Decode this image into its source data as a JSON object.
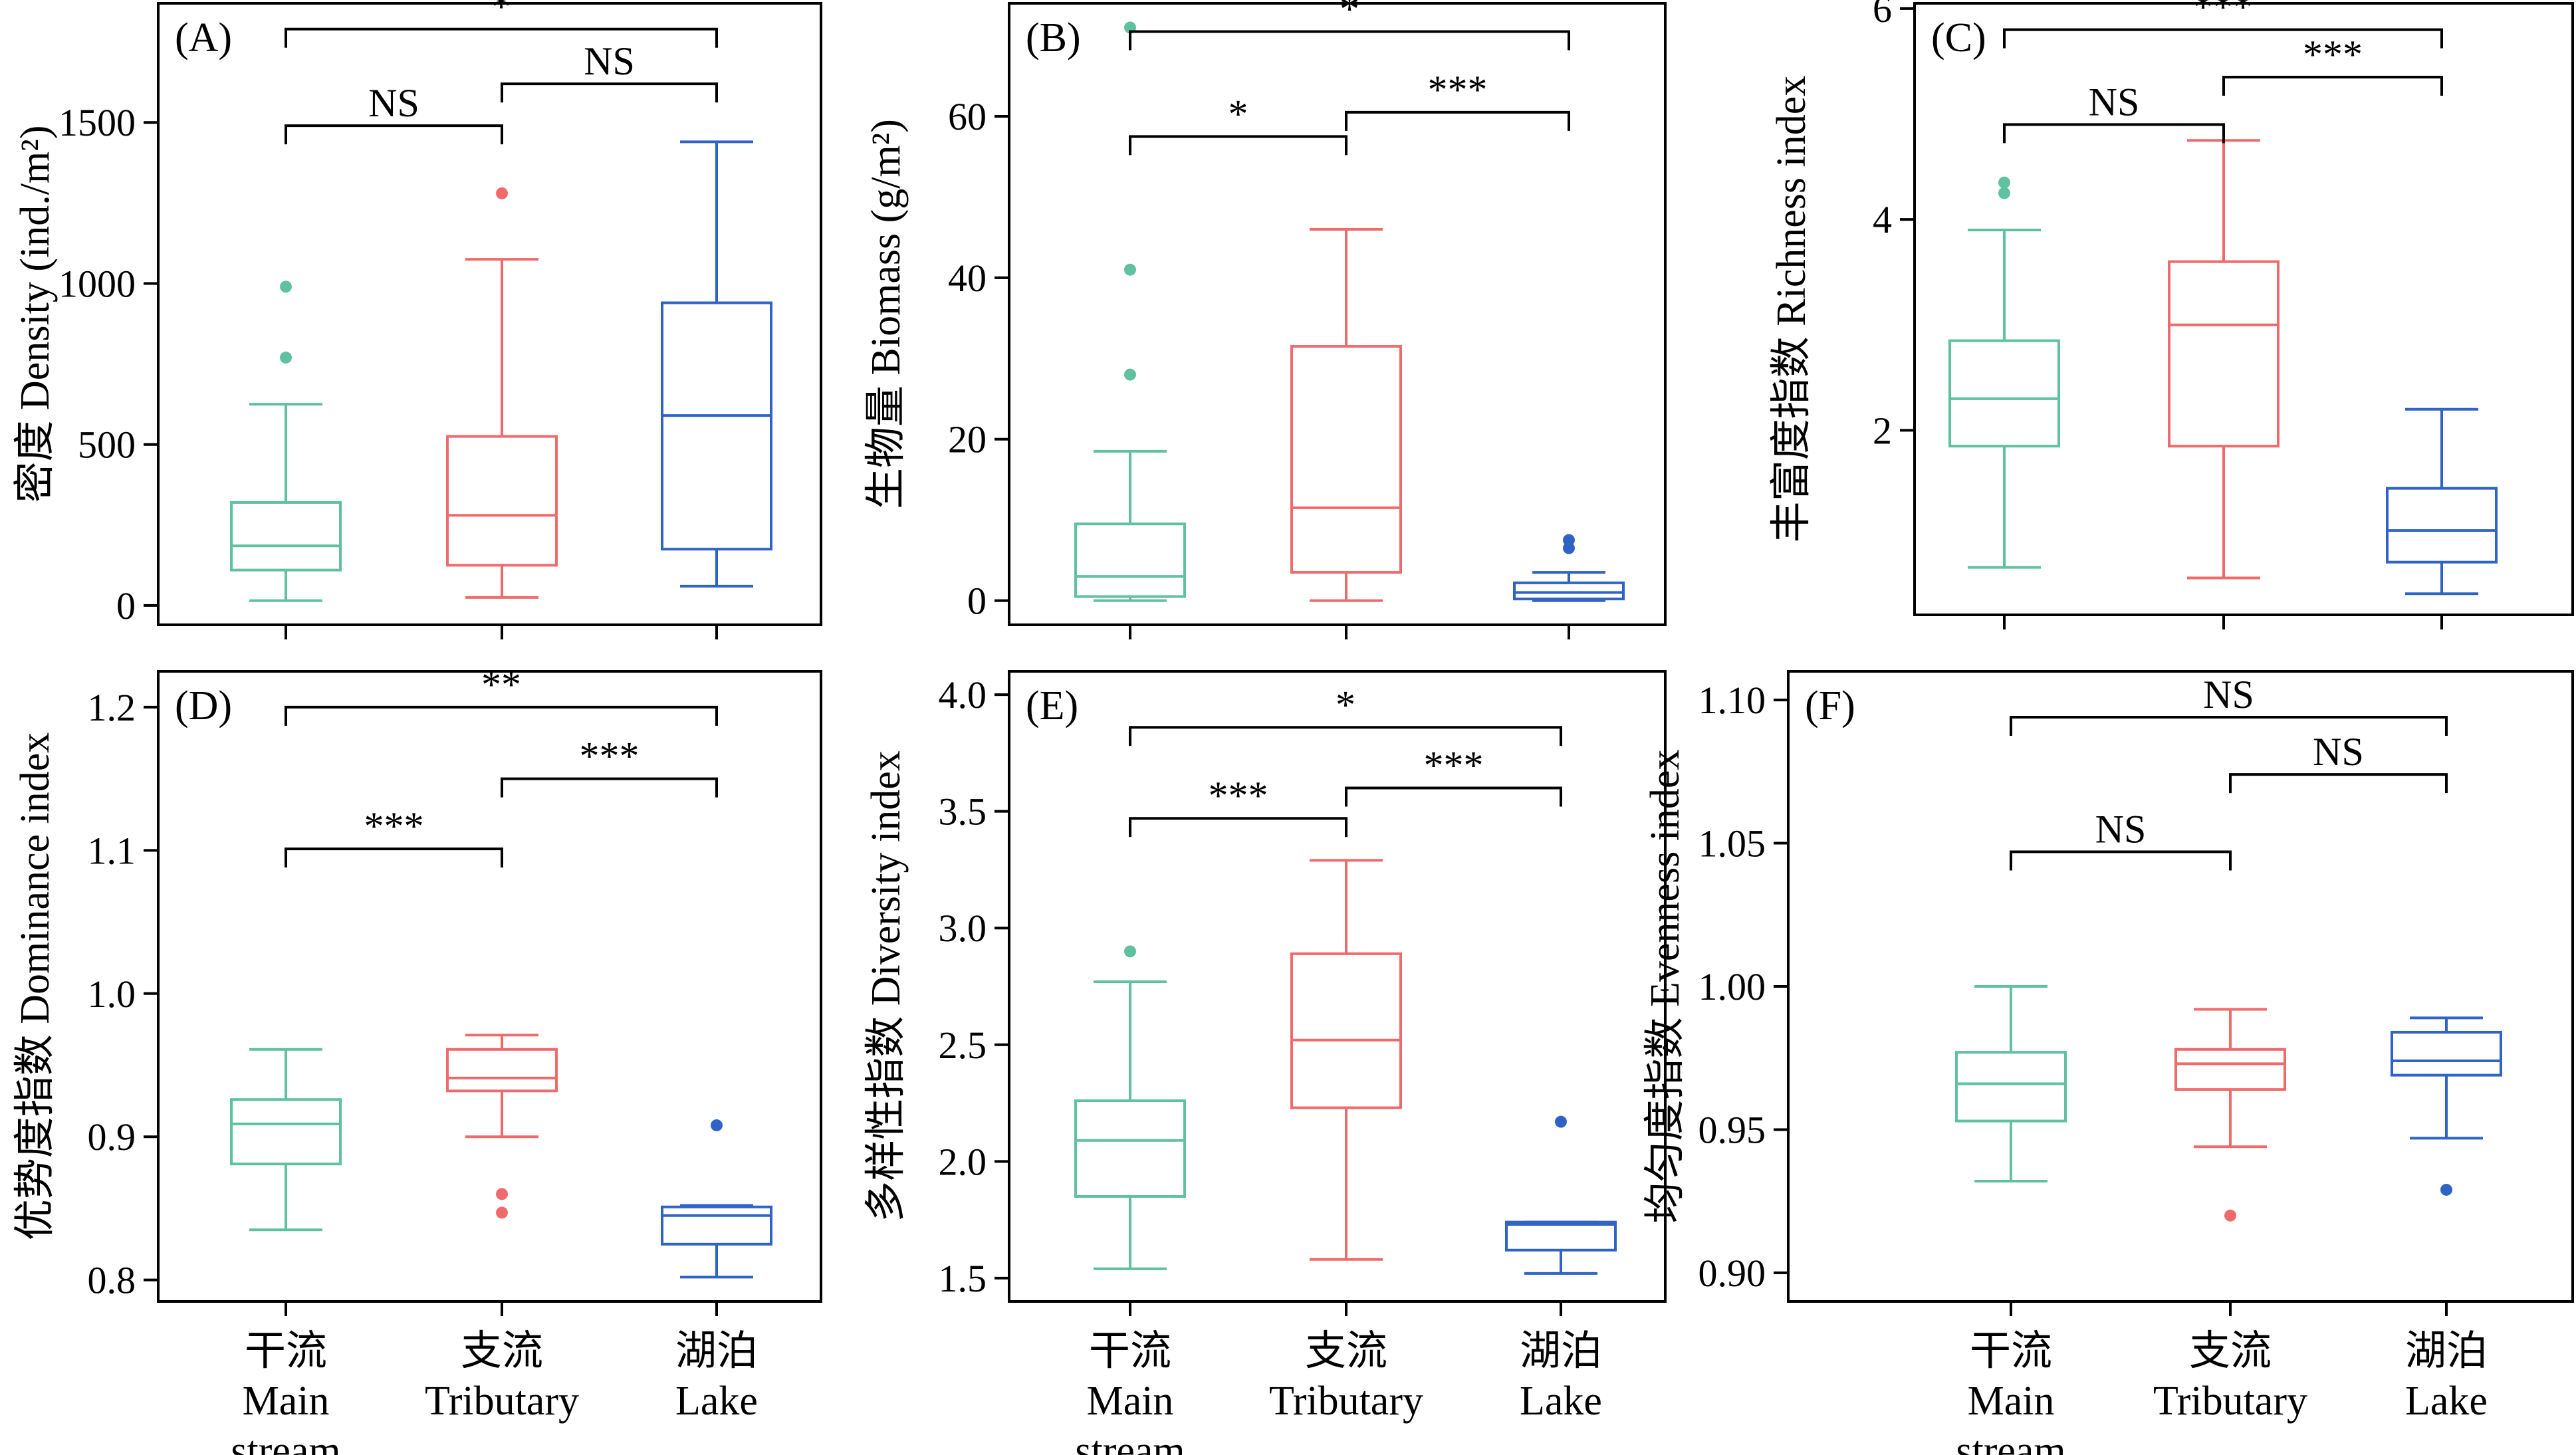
{
  "colors": {
    "main": "#5fc1a0",
    "tributary": "#ef6b6b",
    "lake": "#2f64c6",
    "axis": "#000000"
  },
  "groups": [
    {
      "zh": "干流",
      "en1": "Main",
      "en2": "stream"
    },
    {
      "zh": "支流",
      "en1": "Tributary",
      "en2": ""
    },
    {
      "zh": "湖泊",
      "en1": "Lake",
      "en2": ""
    }
  ],
  "chart_data": [
    {
      "type": "box",
      "panel": "(A)",
      "ylabel": "密度 Density (ind./m²)",
      "ylim": [
        -60,
        1870
      ],
      "yticks": [
        0,
        500,
        1000,
        1500
      ],
      "ytick_labels": [
        "0",
        "500",
        "1000",
        "1500"
      ],
      "boxes": [
        {
          "group": "Main stream",
          "min": 15,
          "q1": 110,
          "median": 185,
          "q3": 320,
          "max": 625,
          "outliers": [
            770,
            990
          ]
        },
        {
          "group": "Tributary",
          "min": 25,
          "q1": 125,
          "median": 280,
          "q3": 525,
          "max": 1075,
          "outliers": [
            1280
          ]
        },
        {
          "group": "Lake",
          "min": 60,
          "q1": 175,
          "median": 590,
          "q3": 940,
          "max": 1440,
          "outliers": []
        }
      ],
      "comparisons": [
        {
          "pair": [
            0,
            2
          ],
          "label": "*",
          "y": 1790
        },
        {
          "pair": [
            0,
            1
          ],
          "label": "NS",
          "y": 1490
        },
        {
          "pair": [
            1,
            2
          ],
          "label": "NS",
          "y": 1620
        }
      ]
    },
    {
      "type": "box",
      "panel": "(B)",
      "ylabel": "生物量 Biomass (g/m²)",
      "ylim": [
        -3,
        74
      ],
      "yticks": [
        0,
        20,
        40,
        60
      ],
      "ytick_labels": [
        "0",
        "20",
        "40",
        "60"
      ],
      "boxes": [
        {
          "group": "Main stream",
          "min": 0,
          "q1": 0.5,
          "median": 3,
          "q3": 9.5,
          "max": 18.5,
          "outliers": [
            28,
            41,
            71
          ]
        },
        {
          "group": "Tributary",
          "min": 0,
          "q1": 3.5,
          "median": 11.5,
          "q3": 31.5,
          "max": 46,
          "outliers": []
        },
        {
          "group": "Lake",
          "min": 0,
          "q1": 0.2,
          "median": 1,
          "q3": 2.2,
          "max": 3.5,
          "outliers": [
            6.5,
            7.5
          ]
        }
      ],
      "comparisons": [
        {
          "pair": [
            0,
            2
          ],
          "label": "*",
          "y": 70.5
        },
        {
          "pair": [
            0,
            1
          ],
          "label": "*",
          "y": 57.5
        },
        {
          "pair": [
            1,
            2
          ],
          "label": "***",
          "y": 60.5
        }
      ]
    },
    {
      "type": "box",
      "panel": "(C)",
      "ylabel": "丰富度指数 Richness index",
      "ylim": [
        0.25,
        6.05
      ],
      "yticks": [
        2,
        4,
        6
      ],
      "ytick_labels": [
        "2",
        "4",
        "6"
      ],
      "boxes": [
        {
          "group": "Main stream",
          "min": 0.7,
          "q1": 1.85,
          "median": 2.3,
          "q3": 2.85,
          "max": 3.9,
          "outliers": [
            4.25,
            4.35
          ]
        },
        {
          "group": "Tributary",
          "min": 0.6,
          "q1": 1.85,
          "median": 3.0,
          "q3": 3.6,
          "max": 4.75,
          "outliers": []
        },
        {
          "group": "Lake",
          "min": 0.45,
          "q1": 0.75,
          "median": 1.05,
          "q3": 1.45,
          "max": 2.2,
          "outliers": []
        }
      ],
      "comparisons": [
        {
          "pair": [
            0,
            2
          ],
          "label": "***",
          "y": 5.8
        },
        {
          "pair": [
            0,
            1
          ],
          "label": "NS",
          "y": 4.9
        },
        {
          "pair": [
            1,
            2
          ],
          "label": "***",
          "y": 5.35
        }
      ]
    },
    {
      "type": "box",
      "panel": "(D)",
      "ylabel": "优势度指数 Dominance index",
      "ylim": [
        0.785,
        1.225
      ],
      "yticks": [
        0.8,
        0.9,
        1.0,
        1.1,
        1.2
      ],
      "ytick_labels": [
        "0.8",
        "0.9",
        "1.0",
        "1.1",
        "1.2"
      ],
      "boxes": [
        {
          "group": "Main stream",
          "min": 0.835,
          "q1": 0.881,
          "median": 0.909,
          "q3": 0.926,
          "max": 0.961,
          "outliers": []
        },
        {
          "group": "Tributary",
          "min": 0.9,
          "q1": 0.932,
          "median": 0.941,
          "q3": 0.961,
          "max": 0.971,
          "outliers": [
            0.847,
            0.86
          ]
        },
        {
          "group": "Lake",
          "min": 0.802,
          "q1": 0.825,
          "median": 0.845,
          "q3": 0.851,
          "max": 0.852,
          "outliers": [
            0.908
          ]
        }
      ],
      "comparisons": [
        {
          "pair": [
            0,
            2
          ],
          "label": "**",
          "y": 1.2
        },
        {
          "pair": [
            0,
            1
          ],
          "label": "***",
          "y": 1.101
        },
        {
          "pair": [
            1,
            2
          ],
          "label": "***",
          "y": 1.15
        }
      ]
    },
    {
      "type": "box",
      "panel": "(E)",
      "ylabel": "多样性指数 Diversity index",
      "ylim": [
        1.4,
        4.1
      ],
      "yticks": [
        1.5,
        2.0,
        2.5,
        3.0,
        3.5,
        4.0
      ],
      "ytick_labels": [
        "1.5",
        "2.0",
        "2.5",
        "3.0",
        "3.5",
        "4.0"
      ],
      "boxes": [
        {
          "group": "Main stream",
          "min": 1.54,
          "q1": 1.85,
          "median": 2.09,
          "q3": 2.26,
          "max": 2.77,
          "outliers": [
            2.9
          ]
        },
        {
          "group": "Tributary",
          "min": 1.58,
          "q1": 2.23,
          "median": 2.52,
          "q3": 2.89,
          "max": 3.29,
          "outliers": []
        },
        {
          "group": "Lake",
          "min": 1.52,
          "q1": 1.62,
          "median": 1.73,
          "q3": 1.74,
          "max": 1.74,
          "outliers": [
            2.17
          ]
        }
      ],
      "comparisons": [
        {
          "pair": [
            0,
            2
          ],
          "label": "*",
          "y": 3.86
        },
        {
          "pair": [
            0,
            1
          ],
          "label": "***",
          "y": 3.47
        },
        {
          "pair": [
            1,
            2
          ],
          "label": "***",
          "y": 3.6
        }
      ]
    },
    {
      "type": "box",
      "panel": "(F)",
      "ylabel": "均匀度指数 Evenness index",
      "ylim": [
        0.89,
        1.11
      ],
      "yticks": [
        0.9,
        0.95,
        1.0,
        1.05,
        1.1
      ],
      "ytick_labels": [
        "0.90",
        "0.95",
        "1.00",
        "1.05",
        "1.10"
      ],
      "boxes": [
        {
          "group": "Main stream",
          "min": 0.932,
          "q1": 0.953,
          "median": 0.966,
          "q3": 0.977,
          "max": 1.0,
          "outliers": []
        },
        {
          "group": "Tributary",
          "min": 0.944,
          "q1": 0.964,
          "median": 0.973,
          "q3": 0.978,
          "max": 0.992,
          "outliers": [
            0.92
          ]
        },
        {
          "group": "Lake",
          "min": 0.947,
          "q1": 0.969,
          "median": 0.974,
          "q3": 0.984,
          "max": 0.989,
          "outliers": [
            0.929
          ]
        }
      ],
      "comparisons": [
        {
          "pair": [
            0,
            2
          ],
          "label": "NS",
          "y": 1.094
        },
        {
          "pair": [
            0,
            1
          ],
          "label": "NS",
          "y": 1.047
        },
        {
          "pair": [
            1,
            2
          ],
          "label": "NS",
          "y": 1.074
        }
      ]
    }
  ]
}
